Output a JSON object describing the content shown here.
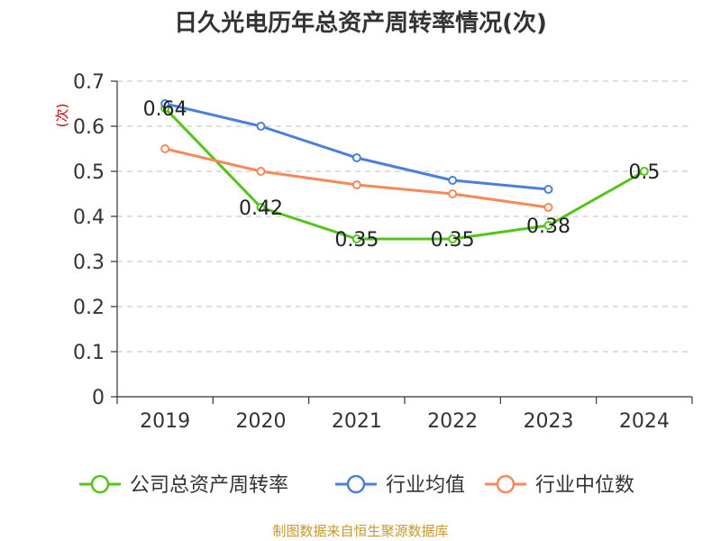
{
  "chart_data": {
    "type": "line",
    "title": "日久光电历年总资产周转率情况(次)",
    "ylabel": "(次)",
    "xlabel": "",
    "categories": [
      "2019",
      "2020",
      "2021",
      "2022",
      "2023",
      "2024"
    ],
    "ylim": [
      0,
      0.7
    ],
    "yticks": [
      0,
      0.1,
      0.2,
      0.3,
      0.4,
      0.5,
      0.6,
      0.7
    ],
    "ytick_labels": [
      "0",
      "0.1",
      "0.2",
      "0.3",
      "0.4",
      "0.5",
      "0.6",
      "0.7"
    ],
    "grid": true,
    "legend_position": "bottom",
    "series": [
      {
        "name": "公司总资产周转率",
        "color": "#52c41a",
        "values": [
          0.64,
          0.42,
          0.35,
          0.35,
          0.38,
          0.5
        ],
        "labels": [
          "0.64",
          "0.42",
          "0.35",
          "0.35",
          "0.38",
          "0.5"
        ]
      },
      {
        "name": "行业均值",
        "color": "#4a7fdb",
        "values": [
          0.65,
          0.6,
          0.53,
          0.48,
          0.46,
          null
        ]
      },
      {
        "name": "行业中位数",
        "color": "#f5895a",
        "values": [
          0.55,
          0.5,
          0.47,
          0.45,
          0.42,
          null
        ]
      }
    ],
    "source": "制图数据来自恒生聚源数据库",
    "colors": {
      "unit_label": "#cc0000",
      "source": "#c8962a",
      "axis": "#333333",
      "grid": "#cccccc"
    }
  }
}
